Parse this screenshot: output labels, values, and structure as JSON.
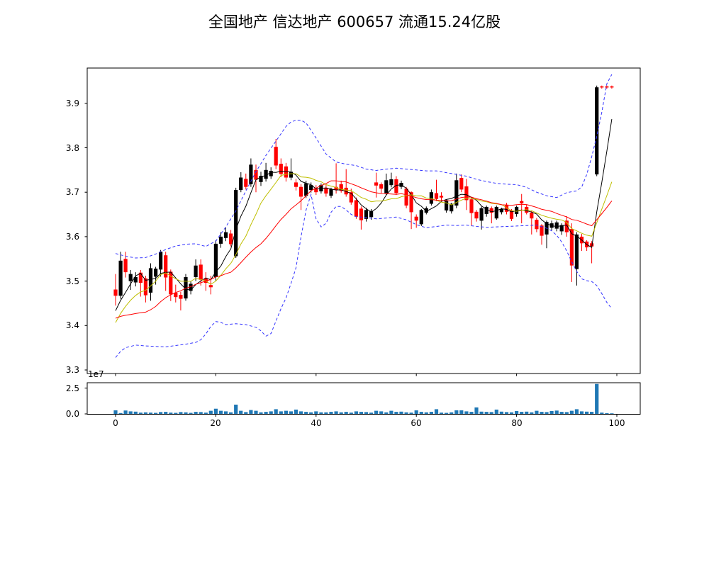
{
  "title": "全国地产  信达地产  600657  流通15.24亿股",
  "header": {
    "market_name": "全国地产",
    "stock_name": "信达地产",
    "stock_code": "600657",
    "float_shares": "流通15.24亿股"
  },
  "chart_data": {
    "type": "candlestick",
    "title": "全国地产  信达地产  600657  流通15.24亿股",
    "panels": [
      "price",
      "volume"
    ],
    "x_axis": {
      "ticks": [
        0,
        20,
        40,
        60,
        80,
        100
      ],
      "xlim": [
        -5.7,
        104.7
      ]
    },
    "price_axis": {
      "ticks": [
        3.3,
        3.4,
        3.5,
        3.6,
        3.7,
        3.8,
        3.9
      ],
      "ylim": [
        3.292,
        3.98
      ],
      "grid": false
    },
    "volume_axis": {
      "ticks": [
        0.0,
        2.5
      ],
      "offset_label": "1e7",
      "unit": 10000000,
      "ylim": [
        0,
        3.05
      ]
    },
    "colors": {
      "up": "#000000",
      "down": "#ff0000",
      "ma5": "#000000",
      "ma10": "#bfbf00",
      "ma20": "#ff0000",
      "band": "#3333ff",
      "volume": "#1f77b4",
      "spine": "#000000",
      "background": "#ffffff"
    },
    "legend": null,
    "candles_ohlc": [
      [
        3.481,
        3.516,
        3.445,
        3.467
      ],
      [
        3.467,
        3.566,
        3.46,
        3.546
      ],
      [
        3.55,
        3.566,
        3.508,
        3.52
      ],
      [
        3.5,
        3.525,
        3.48,
        3.516
      ],
      [
        3.497,
        3.52,
        3.488,
        3.509
      ],
      [
        3.519,
        3.525,
        3.465,
        3.496
      ],
      [
        3.506,
        3.512,
        3.452,
        3.468
      ],
      [
        3.474,
        3.54,
        3.456,
        3.529
      ],
      [
        3.51,
        3.532,
        3.492,
        3.528
      ],
      [
        3.526,
        3.57,
        3.51,
        3.566
      ],
      [
        3.558,
        3.566,
        3.478,
        3.508
      ],
      [
        3.521,
        3.526,
        3.455,
        3.47
      ],
      [
        3.474,
        3.492,
        3.452,
        3.464
      ],
      [
        3.469,
        3.476,
        3.434,
        3.46
      ],
      [
        3.461,
        3.516,
        3.456,
        3.509
      ],
      [
        3.478,
        3.5,
        3.47,
        3.494
      ],
      [
        3.509,
        3.549,
        3.5,
        3.535
      ],
      [
        3.537,
        3.549,
        3.49,
        3.503
      ],
      [
        3.506,
        3.52,
        3.478,
        3.496
      ],
      [
        3.491,
        3.512,
        3.47,
        3.486
      ],
      [
        3.509,
        3.592,
        3.5,
        3.584
      ],
      [
        3.584,
        3.61,
        3.575,
        3.6
      ],
      [
        3.597,
        3.62,
        3.59,
        3.61
      ],
      [
        3.607,
        3.615,
        3.578,
        3.583
      ],
      [
        3.556,
        3.71,
        3.552,
        3.705
      ],
      [
        3.705,
        3.745,
        3.7,
        3.733
      ],
      [
        3.73,
        3.742,
        3.706,
        3.712
      ],
      [
        3.718,
        3.776,
        3.712,
        3.762
      ],
      [
        3.75,
        3.762,
        3.7,
        3.728
      ],
      [
        3.723,
        3.746,
        3.714,
        3.737
      ],
      [
        3.73,
        3.766,
        3.724,
        3.75
      ],
      [
        3.736,
        3.756,
        3.73,
        3.748
      ],
      [
        3.802,
        3.82,
        3.752,
        3.76
      ],
      [
        3.764,
        3.776,
        3.734,
        3.741
      ],
      [
        3.758,
        3.766,
        3.724,
        3.733
      ],
      [
        3.733,
        3.776,
        3.727,
        3.746
      ],
      [
        3.722,
        3.73,
        3.704,
        3.712
      ],
      [
        3.712,
        3.718,
        3.66,
        3.69
      ],
      [
        3.692,
        3.726,
        3.687,
        3.72
      ],
      [
        3.705,
        3.722,
        3.699,
        3.716
      ],
      [
        3.709,
        3.716,
        3.694,
        3.7
      ],
      [
        3.702,
        3.72,
        3.697,
        3.716
      ],
      [
        3.71,
        3.716,
        3.69,
        3.697
      ],
      [
        3.692,
        3.71,
        3.687,
        3.707
      ],
      [
        3.712,
        3.765,
        3.697,
        3.705
      ],
      [
        3.718,
        3.726,
        3.699,
        3.703
      ],
      [
        3.71,
        3.752,
        3.69,
        3.695
      ],
      [
        3.7,
        3.708,
        3.672,
        3.677
      ],
      [
        3.682,
        3.688,
        3.64,
        3.645
      ],
      [
        3.663,
        3.668,
        3.616,
        3.637
      ],
      [
        3.64,
        3.665,
        3.634,
        3.66
      ],
      [
        3.644,
        3.662,
        3.638,
        3.658
      ],
      [
        3.722,
        3.744,
        3.688,
        3.715
      ],
      [
        3.718,
        3.722,
        3.698,
        3.708
      ],
      [
        3.698,
        3.742,
        3.694,
        3.727
      ],
      [
        3.716,
        3.744,
        3.711,
        3.729
      ],
      [
        3.729,
        3.736,
        3.694,
        3.698
      ],
      [
        3.712,
        3.726,
        3.707,
        3.721
      ],
      [
        3.708,
        3.712,
        3.664,
        3.67
      ],
      [
        3.7,
        3.702,
        3.617,
        3.655
      ],
      [
        3.645,
        3.65,
        3.62,
        3.636
      ],
      [
        3.628,
        3.662,
        3.624,
        3.66
      ],
      [
        3.654,
        3.668,
        3.65,
        3.664
      ],
      [
        3.674,
        3.706,
        3.67,
        3.7
      ],
      [
        3.698,
        3.728,
        3.68,
        3.685
      ],
      [
        3.692,
        3.7,
        3.68,
        3.688
      ],
      [
        3.659,
        3.684,
        3.654,
        3.682
      ],
      [
        3.657,
        3.676,
        3.652,
        3.674
      ],
      [
        3.67,
        3.742,
        3.664,
        3.727
      ],
      [
        3.732,
        3.74,
        3.7,
        3.706
      ],
      [
        3.713,
        3.73,
        3.66,
        3.682
      ],
      [
        3.684,
        3.69,
        3.625,
        3.653
      ],
      [
        3.656,
        3.66,
        3.634,
        3.641
      ],
      [
        3.636,
        3.668,
        3.616,
        3.664
      ],
      [
        3.651,
        3.67,
        3.645,
        3.667
      ],
      [
        3.664,
        3.668,
        3.63,
        3.654
      ],
      [
        3.641,
        3.67,
        3.638,
        3.667
      ],
      [
        3.655,
        3.665,
        3.65,
        3.662
      ],
      [
        3.672,
        3.676,
        3.65,
        3.656
      ],
      [
        3.659,
        3.662,
        3.635,
        3.64
      ],
      [
        3.651,
        3.67,
        3.645,
        3.667
      ],
      [
        3.68,
        3.696,
        3.63,
        3.675
      ],
      [
        3.667,
        3.672,
        3.65,
        3.654
      ],
      [
        3.654,
        3.658,
        3.605,
        3.641
      ],
      [
        3.638,
        3.642,
        3.61,
        3.617
      ],
      [
        3.625,
        3.628,
        3.582,
        3.602
      ],
      [
        3.605,
        3.636,
        3.574,
        3.633
      ],
      [
        3.62,
        3.636,
        3.614,
        3.63
      ],
      [
        3.618,
        3.636,
        3.612,
        3.632
      ],
      [
        3.612,
        3.63,
        3.604,
        3.626
      ],
      [
        3.636,
        3.646,
        3.6,
        3.61
      ],
      [
        3.617,
        3.63,
        3.498,
        3.535
      ],
      [
        3.527,
        3.61,
        3.49,
        3.605
      ],
      [
        3.6,
        3.606,
        3.568,
        3.585
      ],
      [
        3.589,
        3.592,
        3.568,
        3.576
      ],
      [
        3.585,
        3.59,
        3.54,
        3.578
      ],
      [
        3.74,
        3.94,
        3.736,
        3.936
      ],
      [
        3.938,
        3.94,
        3.933,
        3.936
      ],
      [
        3.938,
        3.94,
        3.933,
        3.936
      ],
      [
        3.938,
        3.94,
        3.933,
        3.936
      ]
    ],
    "volumes_e7": [
      0.35,
      0.08,
      0.33,
      0.25,
      0.22,
      0.12,
      0.15,
      0.12,
      0.1,
      0.18,
      0.2,
      0.12,
      0.1,
      0.18,
      0.15,
      0.1,
      0.2,
      0.18,
      0.12,
      0.3,
      0.5,
      0.3,
      0.25,
      0.15,
      0.9,
      0.3,
      0.18,
      0.38,
      0.3,
      0.15,
      0.2,
      0.25,
      0.45,
      0.25,
      0.3,
      0.25,
      0.42,
      0.25,
      0.2,
      0.15,
      0.25,
      0.15,
      0.15,
      0.2,
      0.25,
      0.15,
      0.2,
      0.12,
      0.25,
      0.2,
      0.18,
      0.12,
      0.3,
      0.25,
      0.15,
      0.3,
      0.2,
      0.22,
      0.15,
      0.12,
      0.34,
      0.2,
      0.15,
      0.2,
      0.45,
      0.12,
      0.1,
      0.15,
      0.35,
      0.35,
      0.25,
      0.2,
      0.63,
      0.22,
      0.2,
      0.18,
      0.42,
      0.22,
      0.18,
      0.15,
      0.28,
      0.2,
      0.22,
      0.15,
      0.3,
      0.2,
      0.18,
      0.28,
      0.32,
      0.2,
      0.18,
      0.3,
      0.45,
      0.25,
      0.22,
      0.2,
      2.9,
      0.12,
      0.07,
      0.04
    ],
    "ma_overlays": [
      {
        "name": "MA5",
        "window": 5,
        "color": "#000000"
      },
      {
        "name": "MA10",
        "window": 10,
        "color": "#bfbf00"
      },
      {
        "name": "MA20",
        "window": 20,
        "color": "#ff0000"
      }
    ],
    "ma_warmup_closes": [
      3.46,
      3.47,
      3.48,
      3.47,
      3.46,
      3.44,
      3.42,
      3.38,
      3.35,
      3.33,
      3.34,
      3.36,
      3.38,
      3.4,
      3.42,
      3.43,
      3.43,
      3.42,
      3.42
    ],
    "band_upper_points": [
      [
        0,
        3.562
      ],
      [
        2,
        3.556
      ],
      [
        4,
        3.552
      ],
      [
        6,
        3.553
      ],
      [
        8,
        3.561
      ],
      [
        10,
        3.571
      ],
      [
        12,
        3.579
      ],
      [
        14,
        3.583
      ],
      [
        16,
        3.584
      ],
      [
        18,
        3.578
      ],
      [
        20,
        3.59
      ],
      [
        22,
        3.622
      ],
      [
        24,
        3.658
      ],
      [
        26,
        3.703
      ],
      [
        28,
        3.746
      ],
      [
        30,
        3.783
      ],
      [
        32,
        3.815
      ],
      [
        34,
        3.848
      ],
      [
        35,
        3.858
      ],
      [
        36,
        3.862
      ],
      [
        37,
        3.862
      ],
      [
        38,
        3.856
      ],
      [
        40,
        3.822
      ],
      [
        42,
        3.786
      ],
      [
        44,
        3.768
      ],
      [
        46,
        3.763
      ],
      [
        48,
        3.76
      ],
      [
        50,
        3.752
      ],
      [
        52,
        3.749
      ],
      [
        54,
        3.752
      ],
      [
        56,
        3.754
      ],
      [
        58,
        3.752
      ],
      [
        60,
        3.75
      ],
      [
        62,
        3.748
      ],
      [
        64,
        3.748
      ],
      [
        66,
        3.744
      ],
      [
        68,
        3.74
      ],
      [
        70,
        3.736
      ],
      [
        72,
        3.729
      ],
      [
        74,
        3.724
      ],
      [
        76,
        3.72
      ],
      [
        78,
        3.718
      ],
      [
        80,
        3.717
      ],
      [
        82,
        3.711
      ],
      [
        84,
        3.7
      ],
      [
        86,
        3.692
      ],
      [
        88,
        3.688
      ],
      [
        90,
        3.699
      ],
      [
        92,
        3.703
      ],
      [
        93,
        3.712
      ],
      [
        94,
        3.74
      ],
      [
        95,
        3.78
      ],
      [
        96,
        3.826
      ],
      [
        97,
        3.88
      ],
      [
        98,
        3.944
      ],
      [
        99,
        3.965
      ]
    ],
    "band_lower_points": [
      [
        0,
        3.328
      ],
      [
        1,
        3.342
      ],
      [
        2,
        3.35
      ],
      [
        4,
        3.356
      ],
      [
        6,
        3.354
      ],
      [
        8,
        3.353
      ],
      [
        10,
        3.352
      ],
      [
        12,
        3.355
      ],
      [
        14,
        3.358
      ],
      [
        16,
        3.362
      ],
      [
        17,
        3.368
      ],
      [
        18,
        3.381
      ],
      [
        19,
        3.398
      ],
      [
        20,
        3.409
      ],
      [
        21,
        3.407
      ],
      [
        22,
        3.402
      ],
      [
        24,
        3.404
      ],
      [
        26,
        3.402
      ],
      [
        28,
        3.396
      ],
      [
        29,
        3.388
      ],
      [
        30,
        3.376
      ],
      [
        31,
        3.382
      ],
      [
        32,
        3.41
      ],
      [
        33,
        3.438
      ],
      [
        34,
        3.462
      ],
      [
        35,
        3.495
      ],
      [
        36,
        3.53
      ],
      [
        37,
        3.6
      ],
      [
        38,
        3.66
      ],
      [
        39,
        3.695
      ],
      [
        40,
        3.64
      ],
      [
        41,
        3.622
      ],
      [
        42,
        3.63
      ],
      [
        43,
        3.655
      ],
      [
        44,
        3.668
      ],
      [
        45,
        3.668
      ],
      [
        46,
        3.66
      ],
      [
        47,
        3.65
      ],
      [
        48,
        3.645
      ],
      [
        50,
        3.643
      ],
      [
        52,
        3.64
      ],
      [
        54,
        3.642
      ],
      [
        56,
        3.644
      ],
      [
        58,
        3.638
      ],
      [
        60,
        3.627
      ],
      [
        62,
        3.62
      ],
      [
        64,
        3.623
      ],
      [
        66,
        3.626
      ],
      [
        68,
        3.625
      ],
      [
        70,
        3.626
      ],
      [
        72,
        3.623
      ],
      [
        74,
        3.621
      ],
      [
        76,
        3.622
      ],
      [
        78,
        3.623
      ],
      [
        80,
        3.624
      ],
      [
        82,
        3.625
      ],
      [
        84,
        3.626
      ],
      [
        86,
        3.619
      ],
      [
        87,
        3.613
      ],
      [
        88,
        3.603
      ],
      [
        89,
        3.588
      ],
      [
        90,
        3.568
      ],
      [
        91,
        3.543
      ],
      [
        92,
        3.522
      ],
      [
        93,
        3.505
      ],
      [
        94,
        3.501
      ],
      [
        95,
        3.499
      ],
      [
        96,
        3.49
      ],
      [
        97,
        3.472
      ],
      [
        98,
        3.452
      ],
      [
        99,
        3.438
      ]
    ],
    "last_price_level": 3.936
  }
}
